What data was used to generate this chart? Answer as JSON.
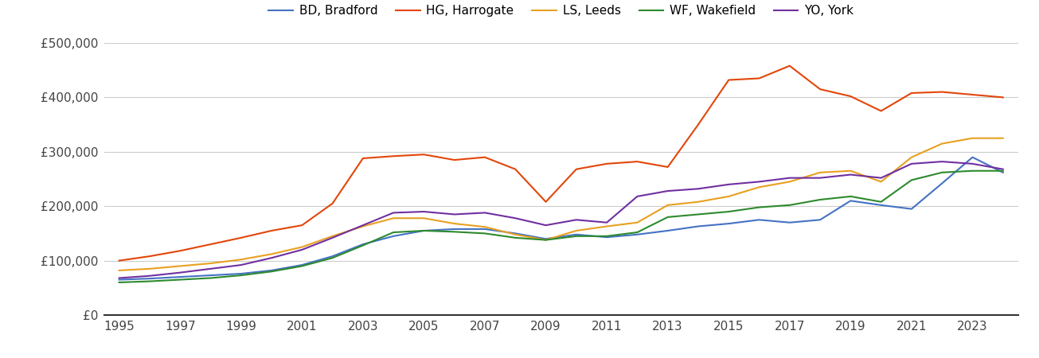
{
  "legend_entries": [
    "BD, Bradford",
    "HG, Harrogate",
    "LS, Leeds",
    "WF, Wakefield",
    "YO, York"
  ],
  "line_colors": [
    "#4472c4",
    "#e2460a",
    "#e8a020",
    "#2d8a2d",
    "#7030a0"
  ],
  "years": [
    1995,
    1996,
    1997,
    1998,
    1999,
    2000,
    2001,
    2002,
    2003,
    2004,
    2005,
    2006,
    2007,
    2008,
    2009,
    2010,
    2011,
    2012,
    2013,
    2014,
    2015,
    2016,
    2017,
    2018,
    2019,
    2020,
    2021,
    2022,
    2023,
    2024
  ],
  "BD_Bradford": [
    65000,
    67000,
    70000,
    73000,
    76000,
    82000,
    92000,
    108000,
    130000,
    145000,
    155000,
    158000,
    158000,
    150000,
    140000,
    148000,
    143000,
    148000,
    155000,
    163000,
    168000,
    175000,
    170000,
    175000,
    210000,
    202000,
    195000,
    242000,
    290000,
    262000
  ],
  "HG_Harrogate": [
    100000,
    108000,
    118000,
    130000,
    142000,
    155000,
    165000,
    205000,
    288000,
    292000,
    295000,
    285000,
    290000,
    268000,
    208000,
    268000,
    278000,
    282000,
    272000,
    350000,
    432000,
    435000,
    458000,
    415000,
    402000,
    375000,
    408000,
    410000,
    405000,
    400000
  ],
  "LS_Leeds": [
    82000,
    85000,
    90000,
    95000,
    102000,
    112000,
    125000,
    145000,
    163000,
    178000,
    178000,
    168000,
    162000,
    148000,
    138000,
    155000,
    163000,
    170000,
    202000,
    208000,
    218000,
    235000,
    245000,
    262000,
    265000,
    245000,
    290000,
    315000,
    325000,
    325000
  ],
  "WF_Wakefield": [
    60000,
    62000,
    65000,
    68000,
    73000,
    80000,
    90000,
    105000,
    128000,
    152000,
    155000,
    153000,
    150000,
    142000,
    138000,
    145000,
    145000,
    152000,
    180000,
    185000,
    190000,
    198000,
    202000,
    212000,
    218000,
    208000,
    248000,
    262000,
    265000,
    265000
  ],
  "YO_York": [
    68000,
    72000,
    78000,
    85000,
    92000,
    105000,
    120000,
    142000,
    165000,
    188000,
    190000,
    185000,
    188000,
    178000,
    165000,
    175000,
    170000,
    218000,
    228000,
    232000,
    240000,
    245000,
    252000,
    252000,
    258000,
    252000,
    278000,
    282000,
    278000,
    268000
  ],
  "ylim": [
    0,
    500000
  ],
  "yticks": [
    0,
    100000,
    200000,
    300000,
    400000,
    500000
  ],
  "ytick_labels": [
    "£0",
    "£100,000",
    "£200,000",
    "£300,000",
    "£400,000",
    "£500,000"
  ],
  "xtick_years": [
    1995,
    1997,
    1999,
    2001,
    2003,
    2005,
    2007,
    2009,
    2011,
    2013,
    2015,
    2017,
    2019,
    2021,
    2023
  ]
}
